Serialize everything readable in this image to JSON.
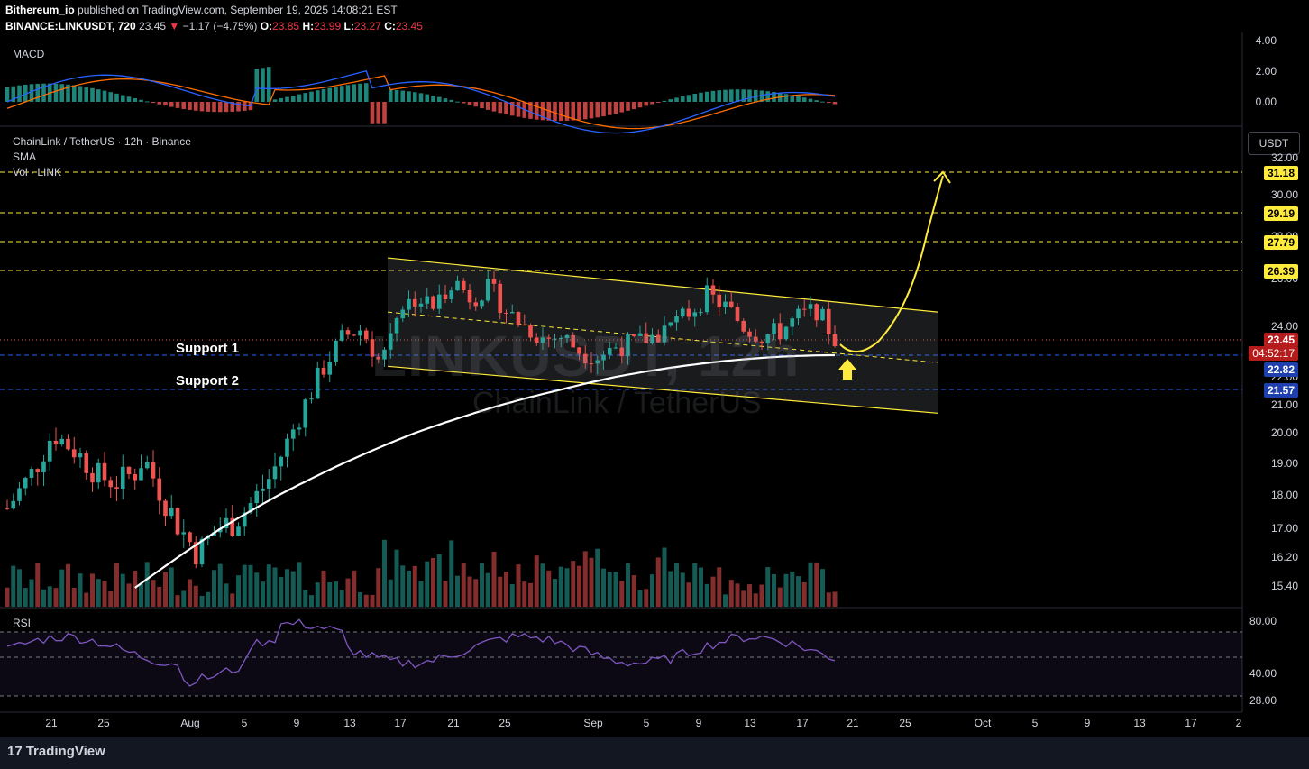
{
  "header": {
    "publisher": "Bithereum_io",
    "published_text": "published on TradingView.com, September 19, 2025 14:08:21 EST",
    "symbol": "BINANCE:LINKUSDT, 720",
    "last": "23.45",
    "change": "−1.17 (−4.75%)",
    "o_label": "O:",
    "o": "23.85",
    "h_label": "H:",
    "h": "23.99",
    "l_label": "L:",
    "l": "23.27",
    "c_label": "C:",
    "c": "23.45"
  },
  "panels": {
    "macd_label": "MACD",
    "main_title": "ChainLink / TetherUS · 12h · Binance",
    "sma_label": "SMA",
    "vol_label": "Vol · LINK",
    "rsi_label": "RSI",
    "currency_button": "USDT"
  },
  "watermark": {
    "big": "LINKUSDT, 12h",
    "small": "ChainLink / TetherUS"
  },
  "annotations": {
    "support1": "Support 1",
    "support2": "Support 2"
  },
  "colors": {
    "up": "#26a69a",
    "down": "#ef5350",
    "level": "#ffeb3b",
    "support": "#2962ff",
    "sma": "#ffffff",
    "rsi": "#7e57c2",
    "macd": "#2962ff",
    "signal": "#ff6d00"
  },
  "footer": {
    "brand": "TradingView",
    "brand_icon": "tradingview-logo-icon"
  },
  "chart_data": {
    "type": "candlestick",
    "title": "ChainLink / TetherUS · 12h · Binance",
    "price_axis_ticks": [
      "32.00",
      "30.00",
      "28.00",
      "26.00",
      "24.00",
      "22.00",
      "21.00",
      "20.00",
      "19.00",
      "18.00",
      "17.00",
      "16.20",
      "15.40"
    ],
    "macd_axis_ticks": [
      "4.00",
      "2.00",
      "0.00"
    ],
    "rsi_axis_ticks": [
      "80.00",
      "40.00",
      "28.00"
    ],
    "date_ticks": [
      "21",
      "25",
      "Aug",
      "5",
      "9",
      "13",
      "17",
      "21",
      "25",
      "Sep",
      "5",
      "9",
      "13",
      "17",
      "21",
      "25",
      "Oct",
      "5",
      "9",
      "13",
      "17",
      "2"
    ],
    "price_tags": {
      "resistance": [
        "31.18",
        "29.19",
        "27.79",
        "26.39"
      ],
      "last": "23.45",
      "countdown": "04:52:17",
      "support": [
        "22.82",
        "21.57"
      ]
    },
    "channel": {
      "upper_start": 27.0,
      "upper_end": 24.6,
      "lower_start": 22.4,
      "lower_end": 20.7
    },
    "target": 31.18
  }
}
